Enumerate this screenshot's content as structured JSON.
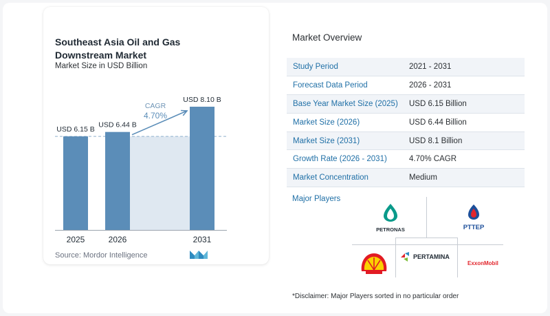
{
  "chart": {
    "title": "Southeast Asia Oil and Gas Downstream Market",
    "subtitle": "Market Size in USD Billion",
    "source": "Source:  Mordor Intelligence"
  },
  "chart_data": {
    "type": "bar",
    "categories": [
      "2025",
      "2026",
      "2031"
    ],
    "values": [
      6.15,
      6.44,
      8.1
    ],
    "value_labels": [
      "USD 6.15 B",
      "USD 6.44 B",
      "USD 8.10 B"
    ],
    "cagr_label": "CAGR",
    "cagr_value": "4.70%",
    "ylim": [
      0,
      8.5
    ],
    "grid": false,
    "colors": {
      "bar": "#5b8db8",
      "band": "#dfe8f1",
      "arrow": "#5b8db8",
      "dash": "#8fb0cc"
    }
  },
  "overview": {
    "title": "Market Overview",
    "rows": [
      {
        "label": "Study Period",
        "value": "2021 - 2031"
      },
      {
        "label": "Forecast Data Period",
        "value": "2026 - 2031"
      },
      {
        "label": "Base Year Market Size (2025)",
        "value": "USD 6.15 Billion"
      },
      {
        "label": "Market Size (2026)",
        "value": "USD 6.44 Billion"
      },
      {
        "label": "Market Size (2031)",
        "value": "USD 8.1 Billion"
      },
      {
        "label": "Growth Rate (2026 - 2031)",
        "value": "4.70% CAGR"
      },
      {
        "label": "Market Concentration",
        "value": "Medium"
      }
    ],
    "players_label": "Major Players",
    "players": {
      "petronas": "PETRONAS",
      "pttep": "PTTEP",
      "pertamina": "PERTAMINA",
      "exxon": "ExxonMobil"
    },
    "disclaimer": "*Disclaimer: Major Players sorted in no particular order"
  }
}
